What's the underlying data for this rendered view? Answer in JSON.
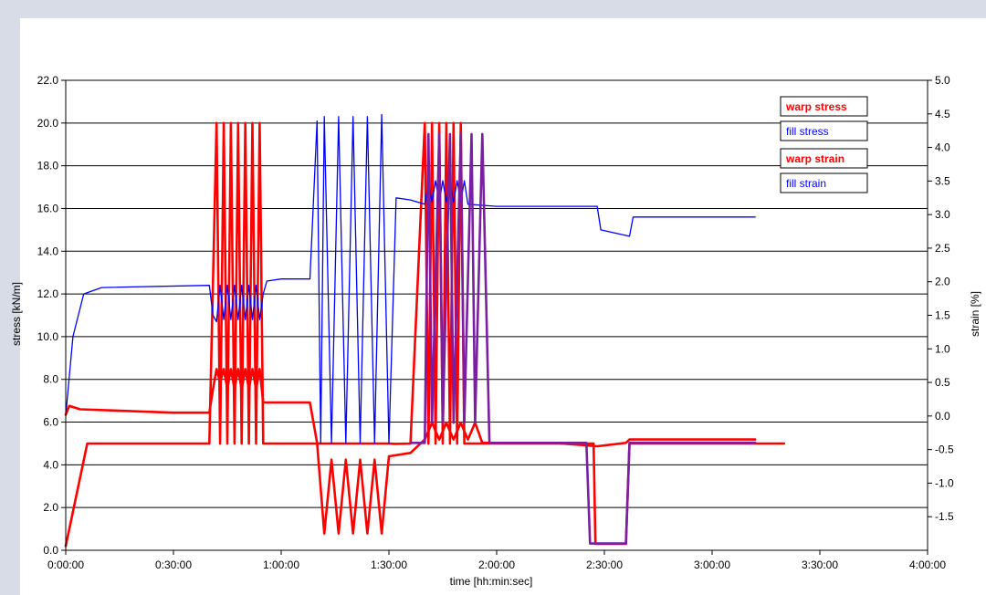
{
  "chart_data": {
    "type": "line",
    "title": "",
    "xlabel": "time [hh:min:sec]",
    "ylabel_left": "stress [kN/m]",
    "ylabel_right": "strain [%]",
    "xlim": [
      0,
      14400
    ],
    "ylim_left": [
      0,
      22
    ],
    "ylim_right": [
      -2.0,
      5.0
    ],
    "x_ticks": [
      "0:00:00",
      "0:30:00",
      "1:00:00",
      "1:30:00",
      "2:00:00",
      "2:30:00",
      "3:00:00",
      "3:30:00",
      "4:00:00"
    ],
    "y_ticks_left": [
      "0.0",
      "2.0",
      "4.0",
      "6.0",
      "8.0",
      "10.0",
      "12.0",
      "14.0",
      "16.0",
      "18.0",
      "20.0",
      "22.0"
    ],
    "y_ticks_right": [
      "-1.5",
      "-1.0",
      "-0.5",
      "0.0",
      "0.5",
      "1.0",
      "1.5",
      "2.0",
      "2.5",
      "3.0",
      "3.5",
      "4.0",
      "4.5",
      "5.0"
    ],
    "grid": "horizontal",
    "legend_position": "top-right",
    "series": [
      {
        "name": "warp stress",
        "axis": "left",
        "color": "#ff0000",
        "points": [
          [
            0,
            0.2
          ],
          [
            360,
            5
          ],
          [
            2400,
            5
          ],
          [
            2520,
            20
          ],
          [
            2580,
            5
          ],
          [
            2640,
            20
          ],
          [
            2700,
            5
          ],
          [
            2760,
            20
          ],
          [
            2820,
            5
          ],
          [
            2880,
            20
          ],
          [
            2940,
            5
          ],
          [
            3000,
            20
          ],
          [
            3060,
            5
          ],
          [
            3120,
            20
          ],
          [
            3180,
            5
          ],
          [
            3240,
            20
          ],
          [
            3300,
            5
          ],
          [
            3600,
            5
          ],
          [
            4080,
            5
          ],
          [
            4200,
            5
          ],
          [
            4600,
            5
          ],
          [
            5400,
            5
          ],
          [
            5500,
            4.98
          ],
          [
            5760,
            5
          ],
          [
            6000,
            20
          ],
          [
            6060,
            5
          ],
          [
            6120,
            20
          ],
          [
            6180,
            5
          ],
          [
            6240,
            20
          ],
          [
            6300,
            5
          ],
          [
            6360,
            20
          ],
          [
            6420,
            5
          ],
          [
            6480,
            20
          ],
          [
            6540,
            5
          ],
          [
            6600,
            20
          ],
          [
            6660,
            5
          ],
          [
            7200,
            5
          ],
          [
            7800,
            5
          ],
          [
            8700,
            5
          ],
          [
            8820,
            5
          ],
          [
            8850,
            0.3
          ],
          [
            9360,
            0.3
          ],
          [
            9420,
            5
          ],
          [
            10800,
            5
          ],
          [
            12000,
            5
          ]
        ]
      },
      {
        "name": "fill stress",
        "axis": "left",
        "color": "#0000ff",
        "points": [
          [
            0,
            6.3
          ],
          [
            120,
            10
          ],
          [
            300,
            12
          ],
          [
            600,
            12.3
          ],
          [
            2400,
            12.4
          ],
          [
            2460,
            11
          ],
          [
            2520,
            10.7
          ],
          [
            2580,
            12.4
          ],
          [
            2640,
            10.8
          ],
          [
            2700,
            12.4
          ],
          [
            2760,
            10.8
          ],
          [
            2820,
            12.4
          ],
          [
            2880,
            10.8
          ],
          [
            2940,
            12.4
          ],
          [
            3000,
            10.8
          ],
          [
            3060,
            12.4
          ],
          [
            3120,
            10.8
          ],
          [
            3180,
            12.4
          ],
          [
            3240,
            10.8
          ],
          [
            3300,
            12
          ],
          [
            3360,
            12.6
          ],
          [
            3600,
            12.7
          ],
          [
            4080,
            12.7
          ],
          [
            4200,
            20.1
          ],
          [
            4260,
            5
          ],
          [
            4320,
            20.3
          ],
          [
            4440,
            5
          ],
          [
            4560,
            20.3
          ],
          [
            4680,
            5
          ],
          [
            4800,
            20.3
          ],
          [
            4920,
            5
          ],
          [
            5040,
            20.3
          ],
          [
            5160,
            5
          ],
          [
            5280,
            20.4
          ],
          [
            5400,
            5
          ],
          [
            5520,
            16.5
          ],
          [
            5760,
            16.4
          ],
          [
            6000,
            16.2
          ],
          [
            6060,
            17.2
          ],
          [
            6120,
            16.3
          ],
          [
            6180,
            17.3
          ],
          [
            6240,
            16.3
          ],
          [
            6300,
            17.3
          ],
          [
            6360,
            16.3
          ],
          [
            6420,
            17.3
          ],
          [
            6480,
            16.3
          ],
          [
            6540,
            17.3
          ],
          [
            6600,
            16.3
          ],
          [
            6660,
            17.3
          ],
          [
            6720,
            16.2
          ],
          [
            7200,
            16.1
          ],
          [
            8160,
            16.1
          ],
          [
            8880,
            16.1
          ],
          [
            8940,
            15.0
          ],
          [
            9420,
            14.7
          ],
          [
            9480,
            15.6
          ],
          [
            10800,
            15.6
          ],
          [
            11520,
            15.6
          ]
        ]
      },
      {
        "name": "warp strain",
        "axis": "right",
        "color": "#ff0000",
        "points": [
          [
            0,
            0.02
          ],
          [
            60,
            0.15
          ],
          [
            240,
            0.1
          ],
          [
            1800,
            0.05
          ],
          [
            2400,
            0.05
          ],
          [
            2460,
            0.4
          ],
          [
            2520,
            0.7
          ],
          [
            2580,
            0.5
          ],
          [
            2640,
            0.7
          ],
          [
            2700,
            0.4
          ],
          [
            2760,
            0.7
          ],
          [
            2820,
            0.4
          ],
          [
            2880,
            0.7
          ],
          [
            2940,
            0.4
          ],
          [
            3000,
            0.7
          ],
          [
            3060,
            0.4
          ],
          [
            3120,
            0.7
          ],
          [
            3180,
            0.4
          ],
          [
            3240,
            0.7
          ],
          [
            3300,
            0.2
          ],
          [
            3600,
            0.2
          ],
          [
            4080,
            0.2
          ],
          [
            4200,
            -0.4
          ],
          [
            4320,
            -1.75
          ],
          [
            4440,
            -0.65
          ],
          [
            4560,
            -1.75
          ],
          [
            4680,
            -0.65
          ],
          [
            4800,
            -1.75
          ],
          [
            4920,
            -0.65
          ],
          [
            5040,
            -1.75
          ],
          [
            5160,
            -0.65
          ],
          [
            5280,
            -1.75
          ],
          [
            5400,
            -0.6
          ],
          [
            5760,
            -0.55
          ],
          [
            6000,
            -0.35
          ],
          [
            6120,
            -0.1
          ],
          [
            6240,
            -0.35
          ],
          [
            6360,
            -0.1
          ],
          [
            6480,
            -0.35
          ],
          [
            6600,
            -0.1
          ],
          [
            6720,
            -0.35
          ],
          [
            6840,
            -0.1
          ],
          [
            6960,
            -0.4
          ],
          [
            7200,
            -0.4
          ],
          [
            8160,
            -0.4
          ],
          [
            8880,
            -0.45
          ],
          [
            9360,
            -0.4
          ],
          [
            9420,
            -0.35
          ],
          [
            10800,
            -0.35
          ],
          [
            11520,
            -0.35
          ]
        ]
      },
      {
        "name": "fill strain",
        "axis": "right",
        "color": "#7a1fa2",
        "points": [
          [
            5760,
            -0.4
          ],
          [
            6000,
            -0.4
          ],
          [
            6060,
            4.2
          ],
          [
            6120,
            -0.1
          ],
          [
            6240,
            4.2
          ],
          [
            6300,
            -0.1
          ],
          [
            6420,
            4.2
          ],
          [
            6480,
            -0.1
          ],
          [
            6600,
            4.2
          ],
          [
            6660,
            -0.1
          ],
          [
            6780,
            4.2
          ],
          [
            6840,
            -0.1
          ],
          [
            6960,
            4.2
          ],
          [
            7080,
            -0.4
          ],
          [
            7200,
            -0.4
          ],
          [
            8160,
            -0.4
          ],
          [
            8700,
            -0.4
          ],
          [
            8760,
            -1.9
          ],
          [
            9360,
            -1.9
          ],
          [
            9420,
            -0.4
          ],
          [
            10800,
            -0.4
          ],
          [
            11520,
            -0.4
          ]
        ]
      }
    ]
  }
}
